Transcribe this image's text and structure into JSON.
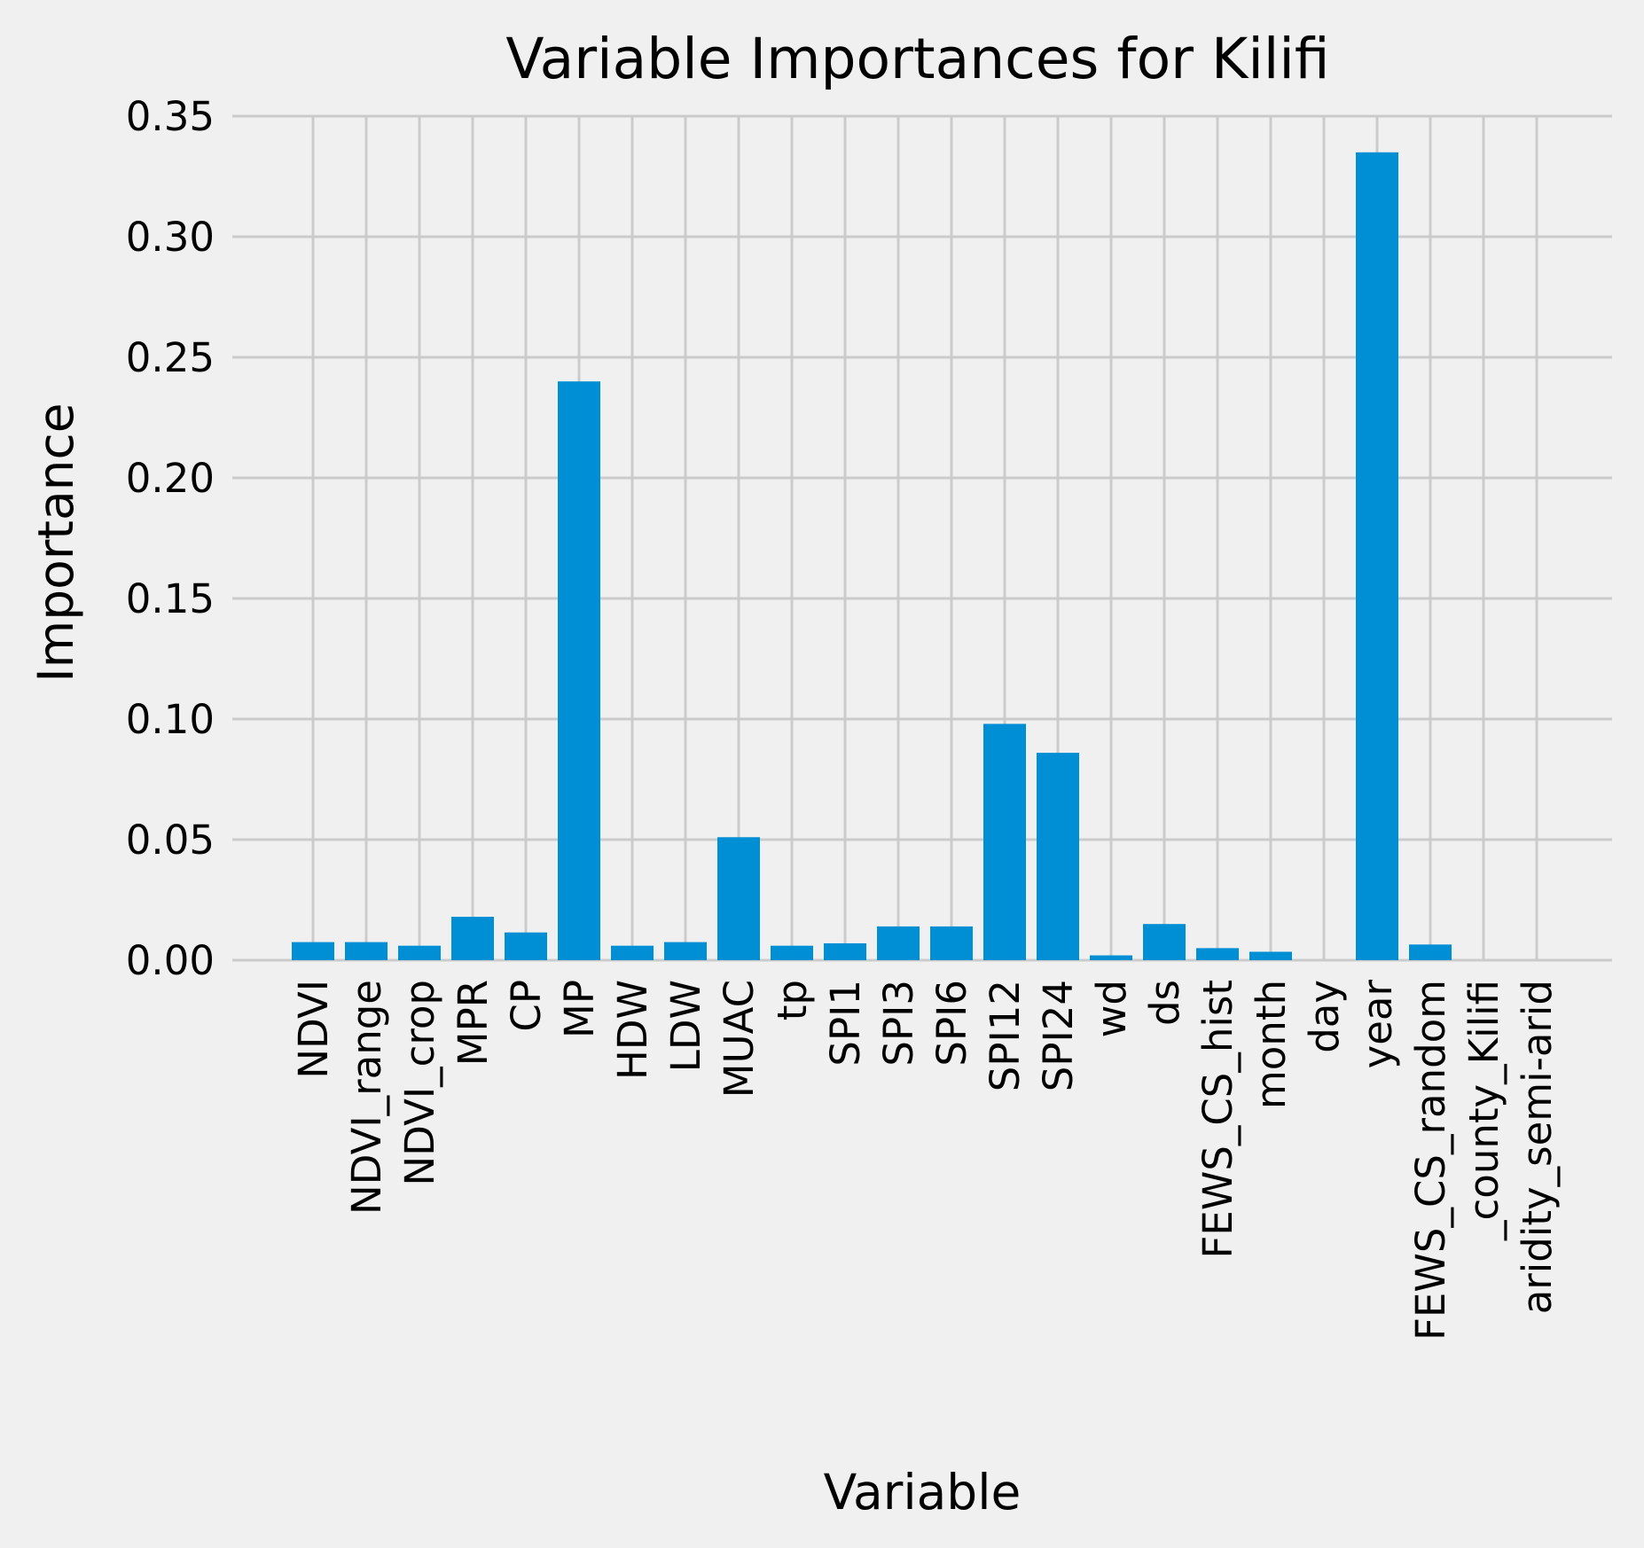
{
  "chart_data": {
    "type": "bar",
    "title": "Variable Importances for Kilifi",
    "xlabel": "Variable",
    "ylabel": "Importance",
    "ylim": [
      0,
      0.35
    ],
    "yticks": [
      "0.00",
      "0.05",
      "0.10",
      "0.15",
      "0.20",
      "0.25",
      "0.30",
      "0.35"
    ],
    "grid": true,
    "bar_color": "#008fd5",
    "background_color": "#f0f0f0",
    "grid_color": "#cbcbcb",
    "categories": [
      "NDVI",
      "NDVI_range",
      "NDVI_crop",
      "MPR",
      "CP",
      "MP",
      "HDW",
      "LDW",
      "MUAC",
      "tp",
      "SPI1",
      "SPI3",
      "SPI6",
      "SPI12",
      "SPI24",
      "wd",
      "ds",
      "FEWS_CS_hist",
      "month",
      "day",
      "year",
      "FEWS_CS_random",
      "_county_Kilifi",
      "aridity_semi-arid"
    ],
    "values": [
      0.0075,
      0.0075,
      0.006,
      0.018,
      0.0115,
      0.24,
      0.006,
      0.0075,
      0.051,
      0.006,
      0.007,
      0.014,
      0.014,
      0.098,
      0.086,
      0.002,
      0.015,
      0.005,
      0.0035,
      0.0,
      0.335,
      0.0065,
      0.0,
      0.0
    ]
  }
}
